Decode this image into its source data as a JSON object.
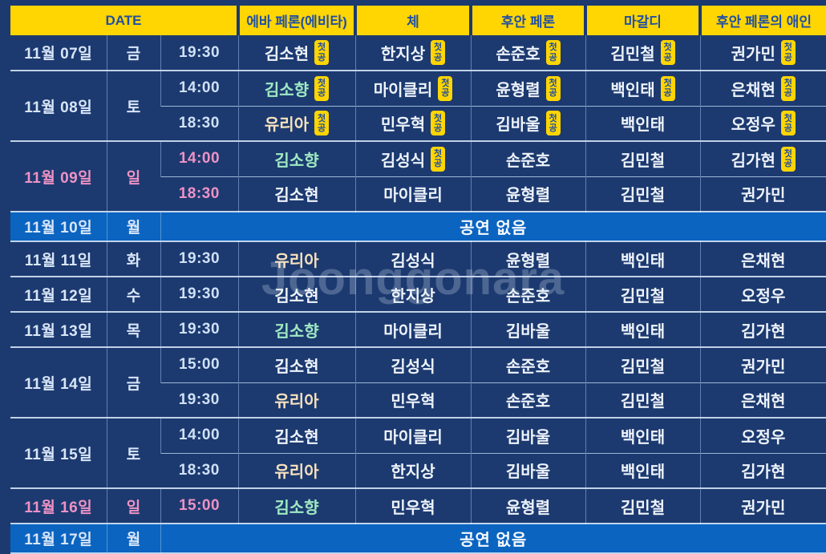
{
  "watermark": "Joonggonara",
  "colors": {
    "background": "#1c3a70",
    "header_yellow": "#ffd502",
    "header_text_blue": "#2150a3",
    "noshow_blue": "#0b64c0",
    "sunday_pink": "#ee92c4",
    "mint_name": "#9fe9c2",
    "cream_name": "#f8e2bd",
    "white_name": "#eef3fb",
    "badge_yellow": "#ffd502",
    "badge_text": "#1e4da0"
  },
  "table": {
    "header": {
      "date": "DATE",
      "columns": [
        "에바 페론(에비타)",
        "체",
        "후안 페론",
        "마갈디",
        "후안 페론의 애인"
      ]
    },
    "badge_label": "첫공",
    "no_show_label": "공연 없음",
    "groups": [
      {
        "date": "11월 07일",
        "day": "금",
        "type": "weekday",
        "shows": [
          {
            "time": "19:30",
            "cast": [
              {
                "name": "김소현",
                "tone": "white",
                "first": true
              },
              {
                "name": "한지상",
                "tone": "white",
                "first": true
              },
              {
                "name": "손준호",
                "tone": "white",
                "first": true
              },
              {
                "name": "김민철",
                "tone": "white",
                "first": true
              },
              {
                "name": "권가민",
                "tone": "white",
                "first": true
              }
            ]
          }
        ]
      },
      {
        "date": "11월 08일",
        "day": "토",
        "type": "weekday",
        "shows": [
          {
            "time": "14:00",
            "cast": [
              {
                "name": "김소향",
                "tone": "mint",
                "first": true
              },
              {
                "name": "마이클리",
                "tone": "white",
                "first": true
              },
              {
                "name": "윤형렬",
                "tone": "white",
                "first": true
              },
              {
                "name": "백인태",
                "tone": "white",
                "first": true
              },
              {
                "name": "은채현",
                "tone": "white",
                "first": true
              }
            ]
          },
          {
            "time": "18:30",
            "cast": [
              {
                "name": "유리아",
                "tone": "cream",
                "first": true
              },
              {
                "name": "민우혁",
                "tone": "white",
                "first": true
              },
              {
                "name": "김바울",
                "tone": "white",
                "first": true
              },
              {
                "name": "백인태",
                "tone": "white",
                "first": false
              },
              {
                "name": "오정우",
                "tone": "white",
                "first": true
              }
            ]
          }
        ]
      },
      {
        "date": "11월 09일",
        "day": "일",
        "type": "sunday",
        "shows": [
          {
            "time": "14:00",
            "cast": [
              {
                "name": "김소향",
                "tone": "mint",
                "first": false
              },
              {
                "name": "김성식",
                "tone": "white",
                "first": true
              },
              {
                "name": "손준호",
                "tone": "white",
                "first": false
              },
              {
                "name": "김민철",
                "tone": "white",
                "first": false
              },
              {
                "name": "김가현",
                "tone": "white",
                "first": true
              }
            ]
          },
          {
            "time": "18:30",
            "cast": [
              {
                "name": "김소현",
                "tone": "white",
                "first": false
              },
              {
                "name": "마이클리",
                "tone": "white",
                "first": false
              },
              {
                "name": "윤형렬",
                "tone": "white",
                "first": false
              },
              {
                "name": "김민철",
                "tone": "white",
                "first": false
              },
              {
                "name": "권가민",
                "tone": "white",
                "first": false
              }
            ]
          }
        ]
      },
      {
        "date": "11월 10일",
        "day": "월",
        "type": "noshow"
      },
      {
        "date": "11월 11일",
        "day": "화",
        "type": "weekday",
        "shows": [
          {
            "time": "19:30",
            "cast": [
              {
                "name": "유리아",
                "tone": "cream",
                "first": false
              },
              {
                "name": "김성식",
                "tone": "white",
                "first": false
              },
              {
                "name": "윤형렬",
                "tone": "white",
                "first": false
              },
              {
                "name": "백인태",
                "tone": "white",
                "first": false
              },
              {
                "name": "은채현",
                "tone": "white",
                "first": false
              }
            ]
          }
        ]
      },
      {
        "date": "11월 12일",
        "day": "수",
        "type": "weekday",
        "shows": [
          {
            "time": "19:30",
            "cast": [
              {
                "name": "김소현",
                "tone": "white",
                "first": false
              },
              {
                "name": "한지상",
                "tone": "white",
                "first": false
              },
              {
                "name": "손준호",
                "tone": "white",
                "first": false
              },
              {
                "name": "김민철",
                "tone": "white",
                "first": false
              },
              {
                "name": "오정우",
                "tone": "white",
                "first": false
              }
            ]
          }
        ]
      },
      {
        "date": "11월 13일",
        "day": "목",
        "type": "weekday",
        "shows": [
          {
            "time": "19:30",
            "cast": [
              {
                "name": "김소향",
                "tone": "mint",
                "first": false
              },
              {
                "name": "마이클리",
                "tone": "white",
                "first": false
              },
              {
                "name": "김바울",
                "tone": "white",
                "first": false
              },
              {
                "name": "백인태",
                "tone": "white",
                "first": false
              },
              {
                "name": "김가현",
                "tone": "white",
                "first": false
              }
            ]
          }
        ]
      },
      {
        "date": "11월 14일",
        "day": "금",
        "type": "weekday",
        "shows": [
          {
            "time": "15:00",
            "cast": [
              {
                "name": "김소현",
                "tone": "white",
                "first": false
              },
              {
                "name": "김성식",
                "tone": "white",
                "first": false
              },
              {
                "name": "손준호",
                "tone": "white",
                "first": false
              },
              {
                "name": "김민철",
                "tone": "white",
                "first": false
              },
              {
                "name": "권가민",
                "tone": "white",
                "first": false
              }
            ]
          },
          {
            "time": "19:30",
            "cast": [
              {
                "name": "유리아",
                "tone": "cream",
                "first": false
              },
              {
                "name": "민우혁",
                "tone": "white",
                "first": false
              },
              {
                "name": "손준호",
                "tone": "white",
                "first": false
              },
              {
                "name": "김민철",
                "tone": "white",
                "first": false
              },
              {
                "name": "은채현",
                "tone": "white",
                "first": false
              }
            ]
          }
        ]
      },
      {
        "date": "11월 15일",
        "day": "토",
        "type": "weekday",
        "shows": [
          {
            "time": "14:00",
            "cast": [
              {
                "name": "김소현",
                "tone": "white",
                "first": false
              },
              {
                "name": "마이클리",
                "tone": "white",
                "first": false
              },
              {
                "name": "김바울",
                "tone": "white",
                "first": false
              },
              {
                "name": "백인태",
                "tone": "white",
                "first": false
              },
              {
                "name": "오정우",
                "tone": "white",
                "first": false
              }
            ]
          },
          {
            "time": "18:30",
            "cast": [
              {
                "name": "유리아",
                "tone": "cream",
                "first": false
              },
              {
                "name": "한지상",
                "tone": "white",
                "first": false
              },
              {
                "name": "김바울",
                "tone": "white",
                "first": false
              },
              {
                "name": "백인태",
                "tone": "white",
                "first": false
              },
              {
                "name": "김가현",
                "tone": "white",
                "first": false
              }
            ]
          }
        ]
      },
      {
        "date": "11월 16일",
        "day": "일",
        "type": "sunday",
        "shows": [
          {
            "time": "15:00",
            "cast": [
              {
                "name": "김소향",
                "tone": "mint",
                "first": false
              },
              {
                "name": "민우혁",
                "tone": "white",
                "first": false
              },
              {
                "name": "윤형렬",
                "tone": "white",
                "first": false
              },
              {
                "name": "김민철",
                "tone": "white",
                "first": false
              },
              {
                "name": "권가민",
                "tone": "white",
                "first": false
              }
            ]
          }
        ]
      },
      {
        "date": "11월 17일",
        "day": "월",
        "type": "noshow"
      }
    ]
  }
}
